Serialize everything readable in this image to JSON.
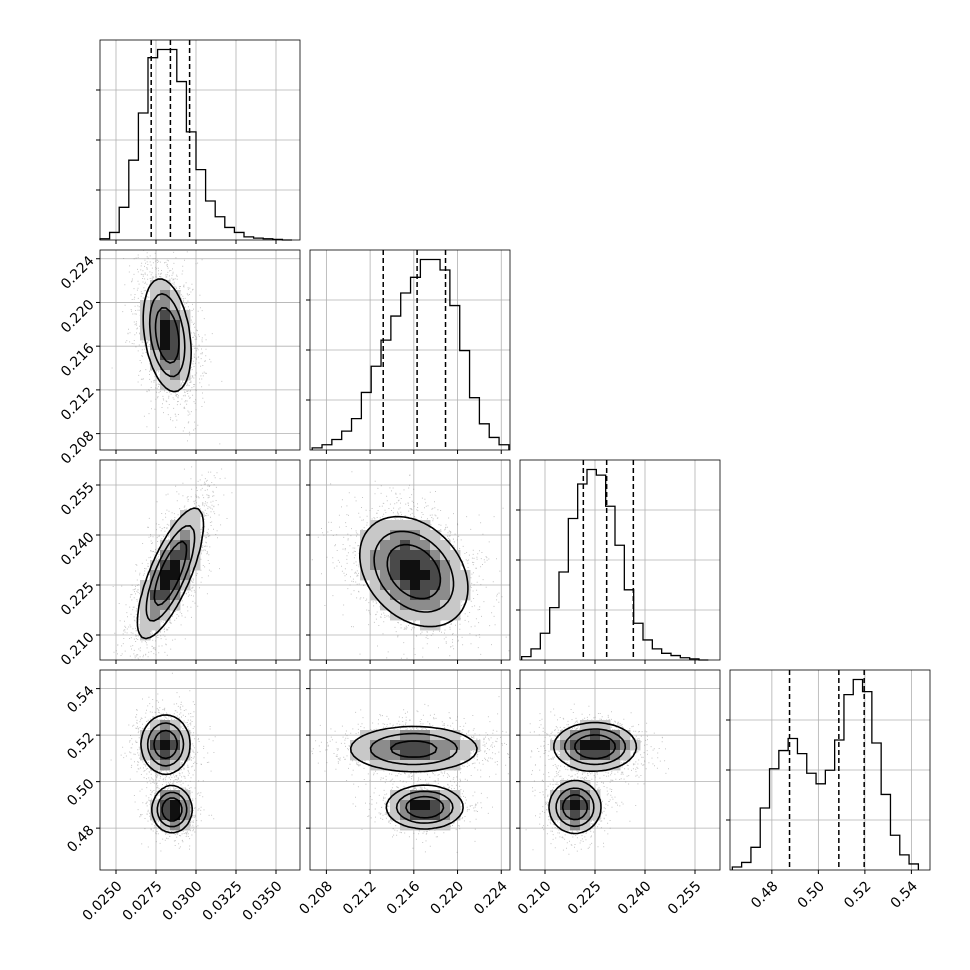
{
  "chart_data": {
    "type": "corner",
    "grid": true,
    "colors": {
      "line": "#000000",
      "grid": "#b0b0b0",
      "scatter": "#808080",
      "background": "#ffffff"
    },
    "params": [
      {
        "range": [
          0.024,
          0.0365
        ],
        "ticks": [
          0.025,
          0.0275,
          0.03,
          0.0325,
          0.035
        ],
        "tick_labels": [
          "0.0250",
          "0.0275",
          "0.0300",
          "0.0325",
          "0.0350"
        ],
        "quantiles": [
          0.0272,
          0.0284,
          0.0296
        ]
      },
      {
        "range": [
          0.2065,
          0.2248
        ],
        "ticks": [
          0.208,
          0.212,
          0.216,
          0.22,
          0.224
        ],
        "tick_labels": [
          "0.208",
          "0.212",
          "0.216",
          "0.220",
          "0.224"
        ],
        "quantiles": [
          0.2132,
          0.2163,
          0.2189
        ]
      },
      {
        "range": [
          0.2025,
          0.2625
        ],
        "ticks": [
          0.21,
          0.225,
          0.24,
          0.255
        ],
        "tick_labels": [
          "0.210",
          "0.225",
          "0.240",
          "0.255"
        ],
        "quantiles": [
          0.2215,
          0.2285,
          0.2365
        ]
      },
      {
        "range": [
          0.462,
          0.548
        ],
        "ticks": [
          0.48,
          0.5,
          0.52,
          0.54
        ],
        "tick_labels": [
          "0.48",
          "0.50",
          "0.52",
          "0.54"
        ],
        "quantiles": [
          0.4876,
          0.5088,
          0.5197
        ]
      }
    ],
    "histograms": [
      {
        "bins": [
          0.024,
          0.0246,
          0.0252,
          0.0258,
          0.0264,
          0.027,
          0.0276,
          0.0282,
          0.0288,
          0.0294,
          0.03,
          0.0306,
          0.0312,
          0.0318,
          0.0324,
          0.033,
          0.0336,
          0.0342,
          0.0348,
          0.0354,
          0.036
        ],
        "counts": [
          0.2,
          1.2,
          5.2,
          12.7,
          20.2,
          29.0,
          30.3,
          30.3,
          25.2,
          17.2,
          11.2,
          6.2,
          3.7,
          2.0,
          1.2,
          0.5,
          0.3,
          0.2,
          0.1,
          0.0
        ]
      },
      {
        "bins": [
          0.2067,
          0.2076,
          0.2085,
          0.2094,
          0.2103,
          0.2112,
          0.2121,
          0.213,
          0.2139,
          0.2148,
          0.2157,
          0.2166,
          0.2175,
          0.2184,
          0.2193,
          0.2202,
          0.2211,
          0.222,
          0.2229,
          0.2238,
          0.2247
        ],
        "counts": [
          0.2,
          0.5,
          1.0,
          1.8,
          3.0,
          5.5,
          8.0,
          10.5,
          12.8,
          15.0,
          16.5,
          18.2,
          18.2,
          17.2,
          13.8,
          9.5,
          5.0,
          2.5,
          1.2,
          0.5
        ]
      },
      {
        "bins": [
          0.203,
          0.2058,
          0.2086,
          0.2114,
          0.2142,
          0.217,
          0.2198,
          0.2226,
          0.2254,
          0.2282,
          0.231,
          0.2338,
          0.2366,
          0.2394,
          0.2422,
          0.245,
          0.2478,
          0.2506,
          0.2534,
          0.2562,
          0.259
        ],
        "counts": [
          0.3,
          1.0,
          2.4,
          4.7,
          7.9,
          12.7,
          15.8,
          17.1,
          16.6,
          13.8,
          10.3,
          6.3,
          3.3,
          1.8,
          1.0,
          0.6,
          0.4,
          0.2,
          0.1,
          0.0
        ]
      },
      {
        "bins": [
          0.463,
          0.467,
          0.471,
          0.475,
          0.479,
          0.483,
          0.487,
          0.491,
          0.495,
          0.499,
          0.503,
          0.507,
          0.511,
          0.515,
          0.519,
          0.523,
          0.527,
          0.531,
          0.535,
          0.539,
          0.543
        ],
        "counts": [
          0.2,
          0.5,
          1.5,
          4.1,
          6.7,
          7.9,
          8.7,
          7.7,
          6.4,
          5.7,
          6.6,
          8.6,
          11.6,
          12.6,
          11.8,
          8.4,
          5.0,
          2.3,
          1.0,
          0.4
        ]
      }
    ],
    "pairs": [
      {
        "x": 0,
        "y": 1,
        "modes": [
          {
            "mx": [
              0.0282,
              0.217
            ],
            "sd": [
              0.00072,
              0.0025
            ],
            "rho": -0.3,
            "w": 1.0
          }
        ]
      },
      {
        "x": 0,
        "y": 2,
        "modes": [
          {
            "mx": [
              0.0284,
              0.2285
            ],
            "sd": [
              0.001,
              0.0095
            ],
            "rho": 0.75,
            "w": 1.0
          }
        ]
      },
      {
        "x": 1,
        "y": 2,
        "modes": [
          {
            "mx": [
              0.216,
              0.229
            ],
            "sd": [
              0.0024,
              0.008
            ],
            "rho": -0.3,
            "w": 1.0
          }
        ]
      },
      {
        "x": 0,
        "y": 3,
        "modes": [
          {
            "mx": [
              0.0281,
              0.516
            ],
            "sd": [
              0.00075,
              0.0062
            ],
            "rho": 0.0,
            "w": 0.6
          },
          {
            "mx": [
              0.0285,
              0.488
            ],
            "sd": [
              0.0006,
              0.0048
            ],
            "rho": 0.0,
            "w": 0.4
          }
        ]
      },
      {
        "x": 1,
        "y": 3,
        "modes": [
          {
            "mx": [
              0.216,
              0.514
            ],
            "sd": [
              0.003,
              0.005
            ],
            "rho": 0.0,
            "w": 0.6
          },
          {
            "mx": [
              0.217,
              0.489
            ],
            "sd": [
              0.0017,
              0.0045
            ],
            "rho": 0.0,
            "w": 0.4
          }
        ]
      },
      {
        "x": 2,
        "y": 3,
        "modes": [
          {
            "mx": [
              0.225,
              0.515
            ],
            "sd": [
              0.006,
              0.005
            ],
            "rho": 0.0,
            "w": 0.6
          },
          {
            "mx": [
              0.219,
              0.489
            ],
            "sd": [
              0.0038,
              0.0055
            ],
            "rho": 0.0,
            "w": 0.4
          }
        ]
      }
    ]
  }
}
